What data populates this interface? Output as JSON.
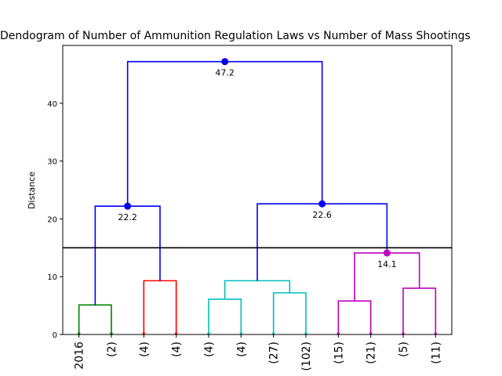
{
  "chart_data": {
    "type": "dendrogram",
    "title": "Dendogram of Number of Ammunition Regulation Laws vs Number of Mass Shootings",
    "ylabel": "Distance",
    "ylim": [
      0,
      50
    ],
    "yticks": [
      0,
      10,
      20,
      30,
      40
    ],
    "cutoff": 15,
    "leaves": [
      "2016",
      "(2)",
      "(4)",
      "(4)",
      "(4)",
      "(4)",
      "(27)",
      "(102)",
      "(15)",
      "(21)",
      "(5)",
      "(11)"
    ],
    "links": [
      {
        "left": 0,
        "right": 1,
        "height": 5.1,
        "color": "#008000"
      },
      {
        "left": 2,
        "right": 3,
        "height": 9.3,
        "color": "#ff0000"
      },
      {
        "left": 4,
        "right": 5,
        "height": 6.1,
        "color": "#00bfbf"
      },
      {
        "left": 6,
        "right": 7,
        "height": 7.2,
        "color": "#00bfbf"
      },
      {
        "left": 8,
        "right": 9,
        "height": 5.8,
        "color": "#bf00bf"
      },
      {
        "left": 10,
        "right": 11,
        "height": 8.0,
        "color": "#bf00bf"
      },
      {
        "left": "c2",
        "right": "c3",
        "height": 9.3,
        "color": "#00bfbf"
      },
      {
        "left": "c4",
        "right": "c5",
        "height": 14.1,
        "color": "#bf00bf"
      },
      {
        "left": "c0",
        "right": "c1",
        "height": 22.2,
        "color": "#0000ff"
      },
      {
        "left": "c6",
        "right": "c7",
        "height": 22.6,
        "color": "#0000ff"
      },
      {
        "left": "c8",
        "right": "c9",
        "height": 47.2,
        "color": "#0000ff"
      }
    ],
    "annotations": [
      {
        "link": 8,
        "label": "22.2",
        "color": "#0000ff"
      },
      {
        "link": 9,
        "label": "22.6",
        "color": "#0000ff"
      },
      {
        "link": 7,
        "label": "14.1",
        "color": "#bf00bf"
      },
      {
        "link": 10,
        "label": "47.2",
        "color": "#0000ff"
      }
    ],
    "leaf_marker_colors": [
      "#008000",
      "#008000",
      "#ff0000",
      "#ff0000",
      "#00bfbf",
      "#00bfbf",
      "#00bfbf",
      "#00bfbf",
      "#bf00bf",
      "#bf00bf",
      "#bf00bf",
      "#bf00bf"
    ]
  }
}
